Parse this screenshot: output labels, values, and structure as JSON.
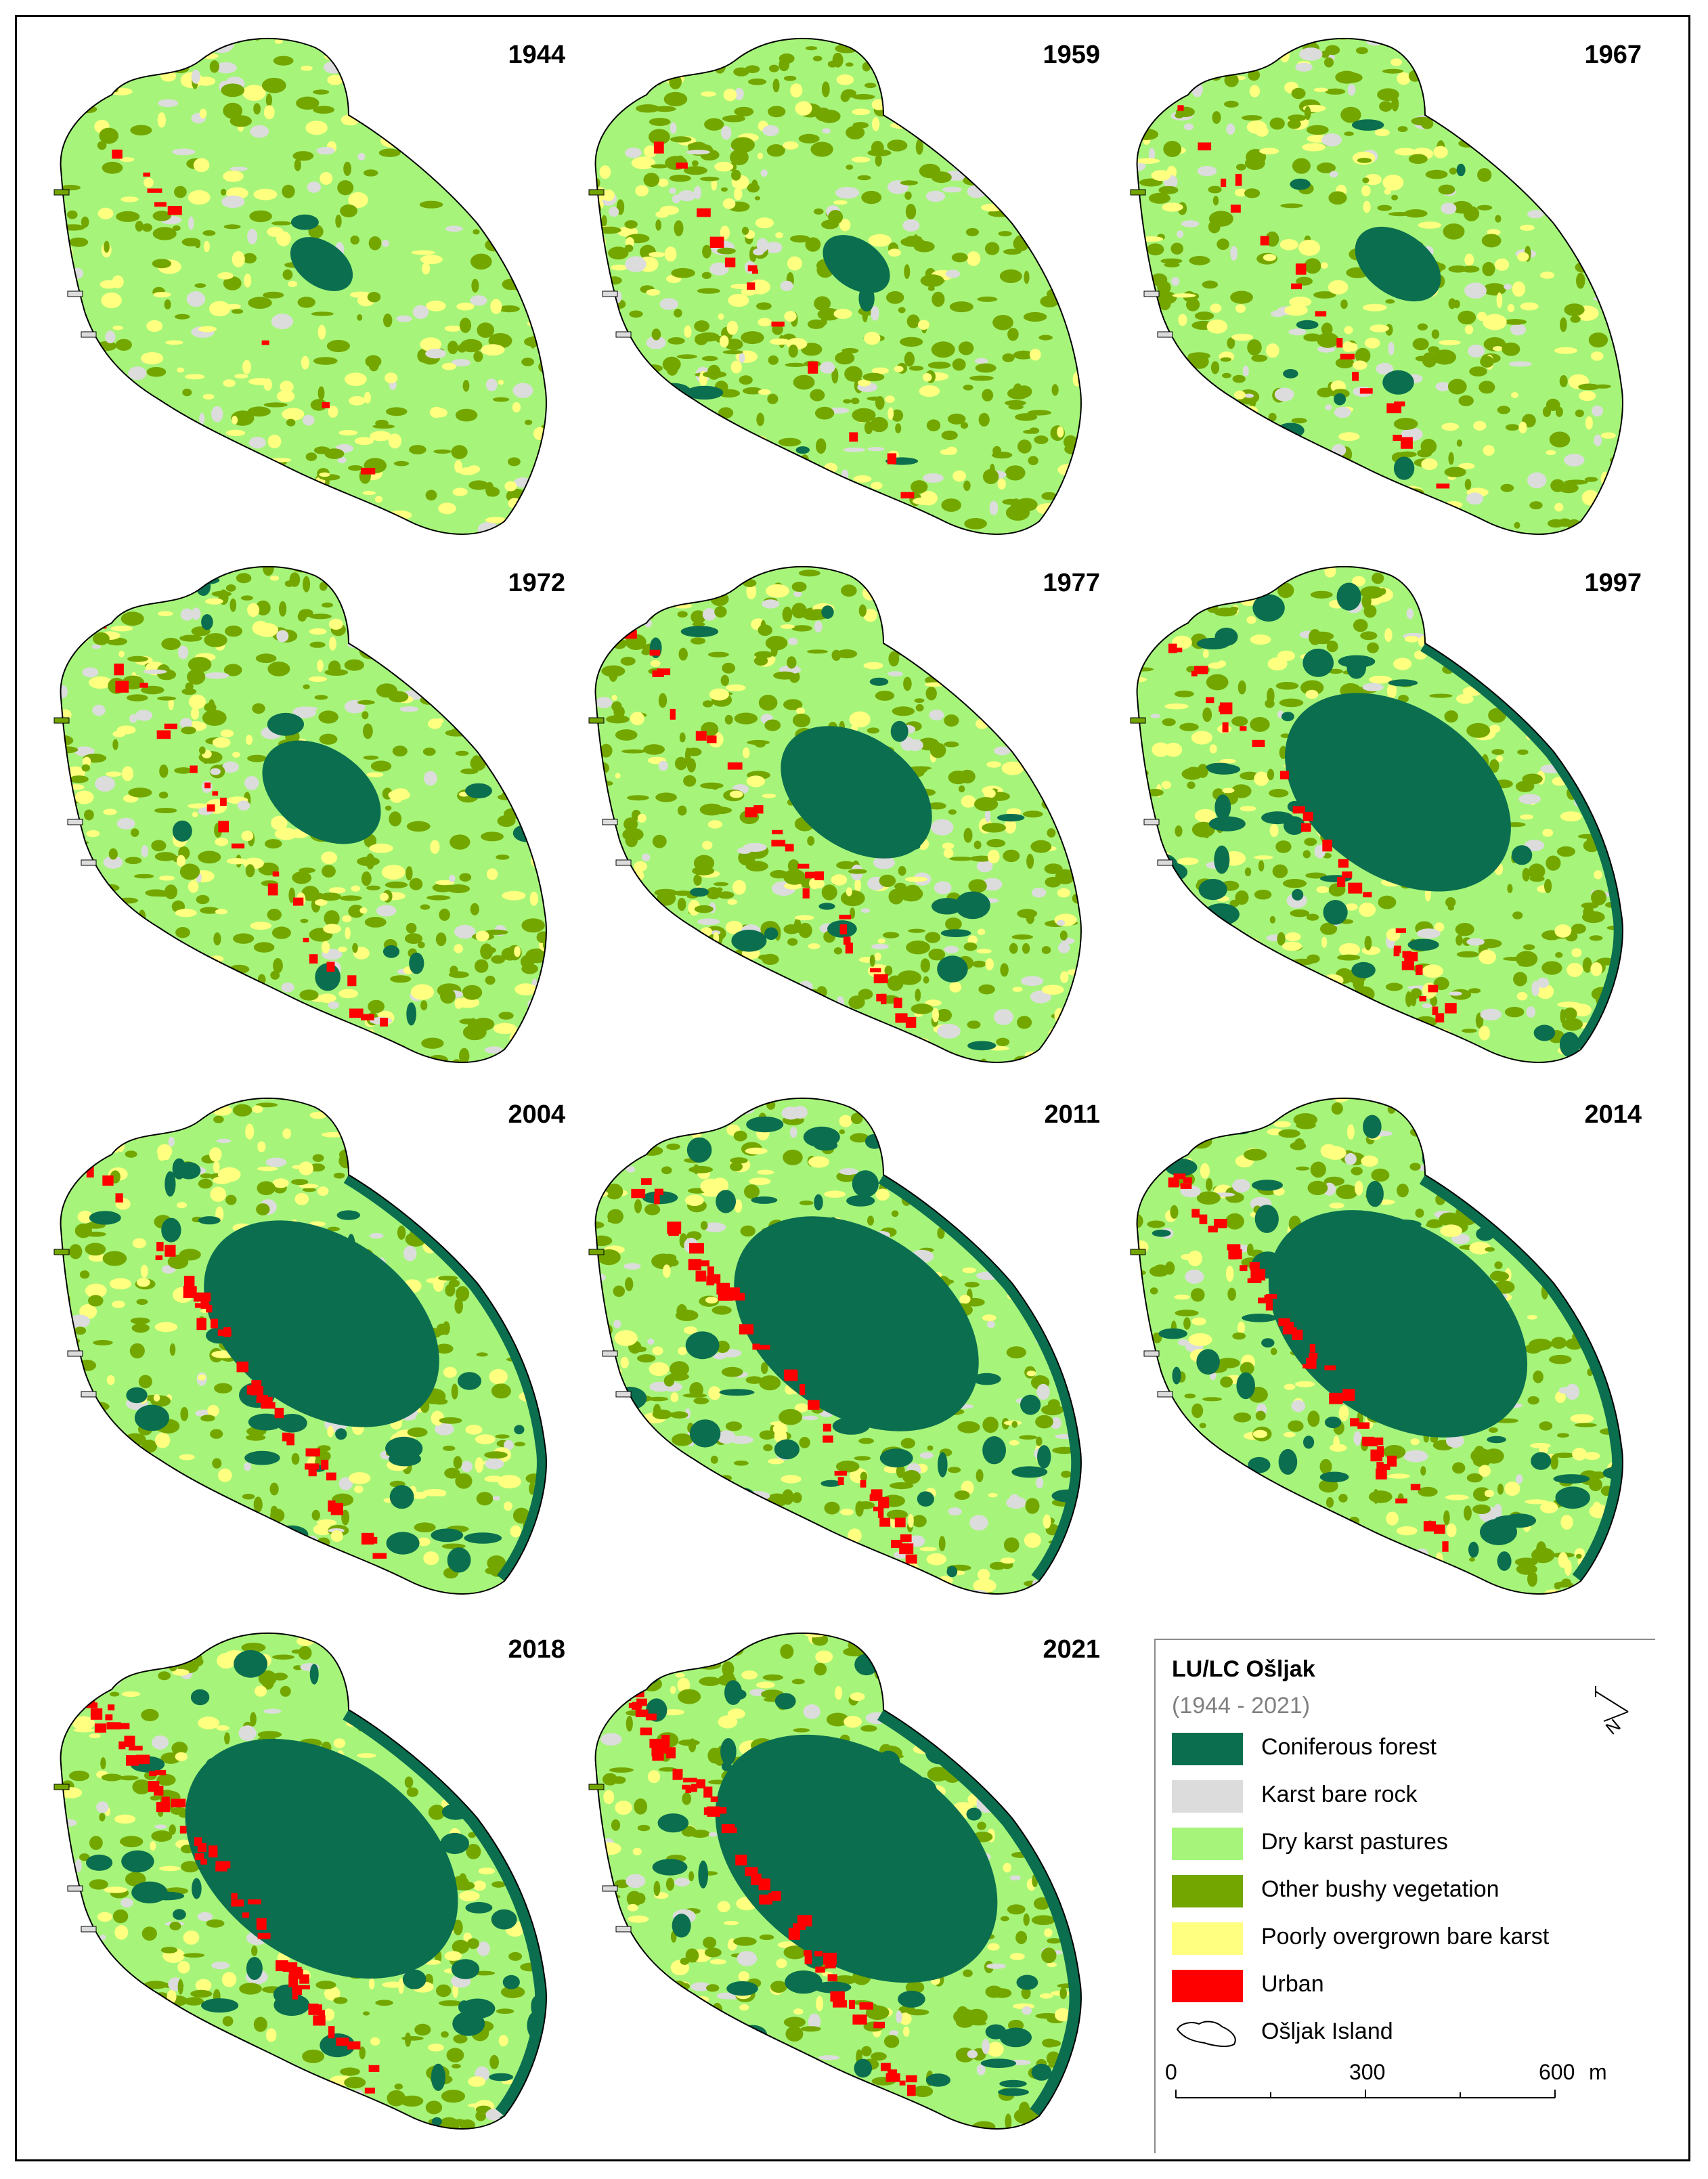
{
  "maps": [
    {
      "year": "1944",
      "forest": 0.03,
      "bushy": 0.25
    },
    {
      "year": "1959",
      "forest": 0.04,
      "bushy": 0.45
    },
    {
      "year": "1967",
      "forest": 0.08,
      "bushy": 0.35
    },
    {
      "year": "1972",
      "forest": 0.15,
      "bushy": 0.4
    },
    {
      "year": "1977",
      "forest": 0.22,
      "bushy": 0.4
    },
    {
      "year": "1997",
      "forest": 0.38,
      "bushy": 0.4
    },
    {
      "year": "2004",
      "forest": 0.4,
      "bushy": 0.3
    },
    {
      "year": "2011",
      "forest": 0.42,
      "bushy": 0.32
    },
    {
      "year": "2014",
      "forest": 0.45,
      "bushy": 0.35
    },
    {
      "year": "2018",
      "forest": 0.48,
      "bushy": 0.3
    },
    {
      "year": "2021",
      "forest": 0.5,
      "bushy": 0.36
    }
  ],
  "legend": {
    "title": "LU/LC Ošljak",
    "subtitle": "(1944 - 2021)",
    "items": [
      {
        "label": "Coniferous forest",
        "color": "#0b6e4f"
      },
      {
        "label": "Karst bare rock",
        "color": "#dcdcdc"
      },
      {
        "label": "Dry karst pastures",
        "color": "#a6f57a"
      },
      {
        "label": "Other bushy vegetation",
        "color": "#74a600"
      },
      {
        "label": "Poorly overgrown bare karst",
        "color": "#ffff80"
      },
      {
        "label": "Urban",
        "color": "#ff0000"
      }
    ],
    "island_label": "Ošljak Island",
    "north_label": "N",
    "scale": {
      "ticks": [
        "0",
        "300",
        "600"
      ],
      "unit": "m"
    }
  },
  "colors": {
    "forest": "#0b6e4f",
    "rock": "#dcdcdc",
    "pasture": "#a6f57a",
    "bushy": "#74a600",
    "karst": "#ffff80",
    "urban": "#ff0000",
    "outline": "#000000"
  }
}
